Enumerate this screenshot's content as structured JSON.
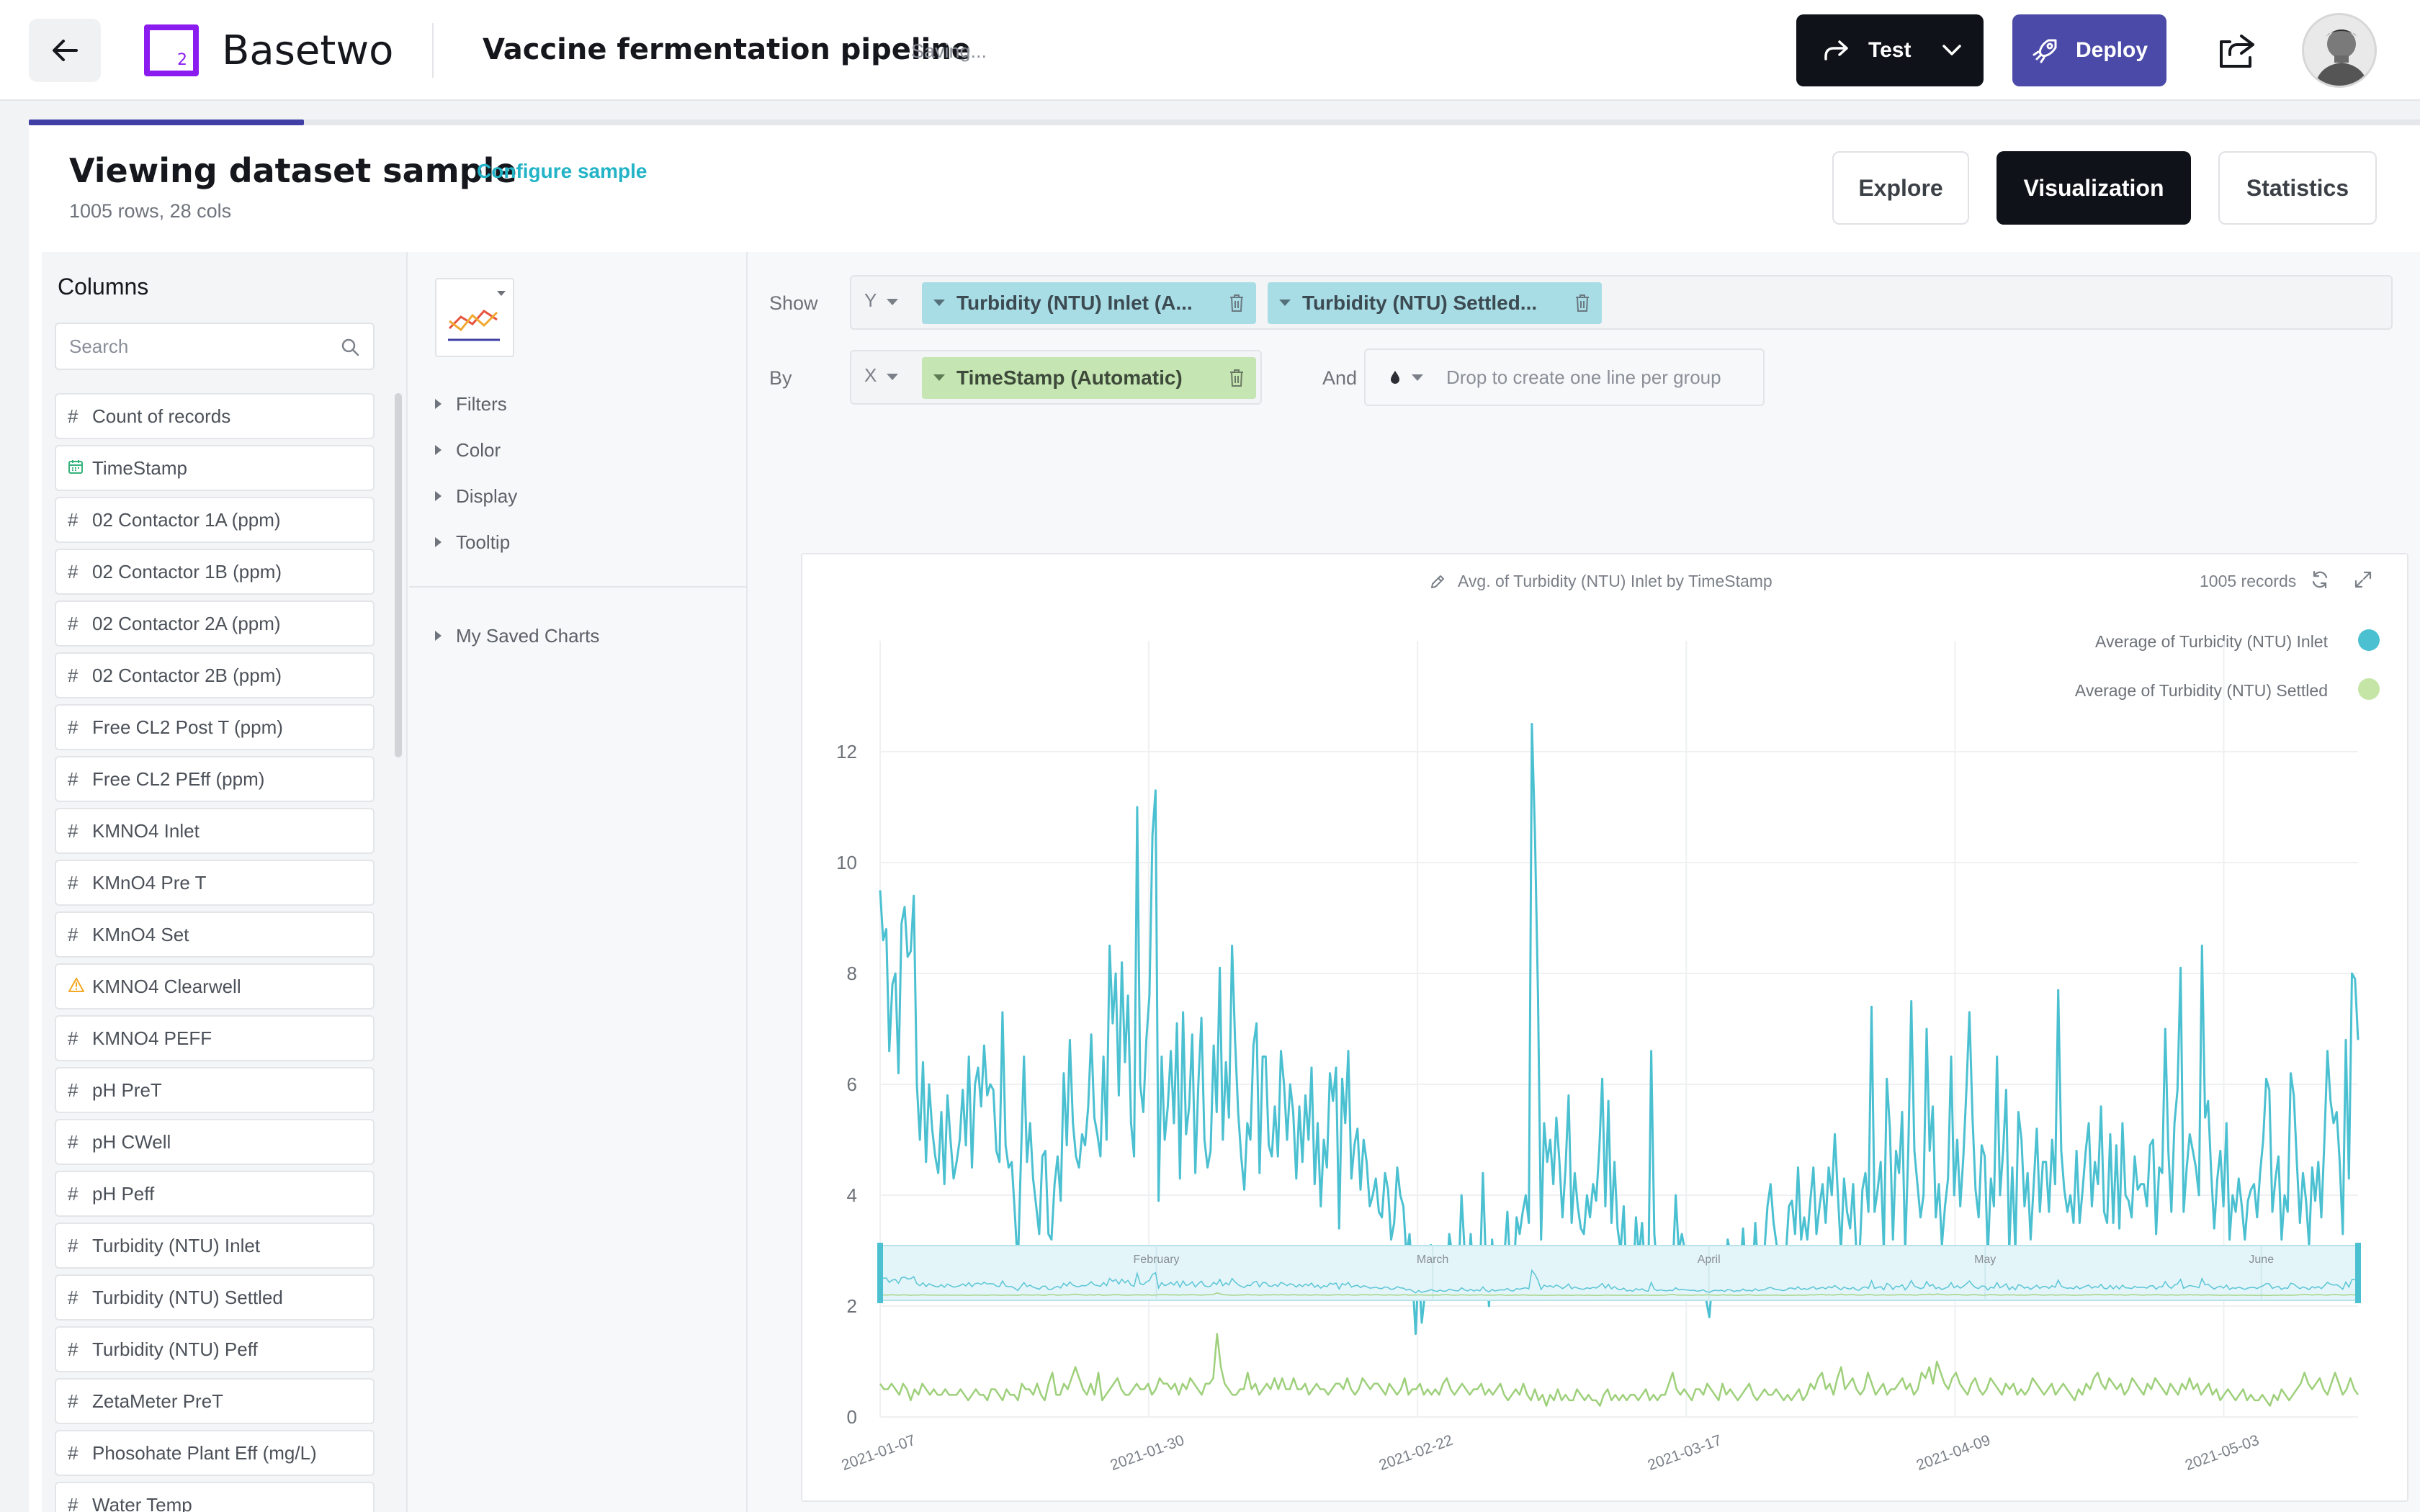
{
  "header": {
    "brand": "Basetwo",
    "logo_mark": "2",
    "project_title": "Vaccine fermentation pipeline",
    "status": "Saving...",
    "test_label": "Test",
    "deploy_label": "Deploy",
    "colors": {
      "logo": "#8b1cf0",
      "deploy_bg": "#4b4aa8",
      "test_bg": "#0f1218"
    }
  },
  "dataset": {
    "title": "Viewing dataset sample",
    "configure_link": "Configure sample",
    "summary": "1005 rows, 28 cols"
  },
  "view_tabs": [
    {
      "label": "Explore",
      "active": false
    },
    {
      "label": "Visualization",
      "active": true
    },
    {
      "label": "Statistics",
      "active": false
    }
  ],
  "columns_panel": {
    "title": "Columns",
    "search_placeholder": "Search",
    "items": [
      {
        "type": "#",
        "label": "Count of records"
      },
      {
        "type": "date",
        "label": "TimeStamp"
      },
      {
        "type": "#",
        "label": "02 Contactor 1A (ppm)"
      },
      {
        "type": "#",
        "label": "02 Contactor 1B (ppm)"
      },
      {
        "type": "#",
        "label": "02 Contactor 2A (ppm)"
      },
      {
        "type": "#",
        "label": "02 Contactor 2B (ppm)"
      },
      {
        "type": "#",
        "label": "Free CL2 Post T (ppm)"
      },
      {
        "type": "#",
        "label": "Free CL2 PEff (ppm)"
      },
      {
        "type": "#",
        "label": "KMNO4 Inlet"
      },
      {
        "type": "#",
        "label": "KMnO4 Pre T"
      },
      {
        "type": "#",
        "label": "KMnO4 Set"
      },
      {
        "type": "warn",
        "label": "KMNO4 Clearwell"
      },
      {
        "type": "#",
        "label": "KMNO4 PEFF"
      },
      {
        "type": "#",
        "label": "pH PreT"
      },
      {
        "type": "#",
        "label": "pH CWell"
      },
      {
        "type": "#",
        "label": "pH Peff"
      },
      {
        "type": "#",
        "label": "Turbidity (NTU) Inlet"
      },
      {
        "type": "#",
        "label": "Turbidity (NTU) Settled"
      },
      {
        "type": "#",
        "label": "Turbidity (NTU) Peff"
      },
      {
        "type": "#",
        "label": "ZetaMeter PreT"
      },
      {
        "type": "#",
        "label": "Phosohate Plant Eff (mg/L)"
      },
      {
        "type": "#",
        "label": "Water Temp"
      }
    ]
  },
  "config_panel": {
    "sections": [
      "Filters",
      "Color",
      "Display",
      "Tooltip"
    ],
    "saved_charts": "My Saved Charts"
  },
  "shelves": {
    "show_label": "Show",
    "by_label": "By",
    "and_label": "And",
    "y_axis": "Y",
    "x_axis": "X",
    "y_pills": [
      "Turbidity (NTU) Inlet (A...",
      "Turbidity (NTU) Settled..."
    ],
    "x_pill": "TimeStamp (Automatic)",
    "group_placeholder": "Drop to create one line per group"
  },
  "chart": {
    "title": "Avg. of Turbidity (NTU) Inlet by TimeStamp",
    "records": "1005 records"
  },
  "chart_data": {
    "type": "line",
    "xlabel": "TimeStamp",
    "ylabel": "",
    "x_ticks": [
      "2021-01-07",
      "2021-01-30",
      "2021-02-22",
      "2021-03-17",
      "2021-04-09",
      "2021-05-03"
    ],
    "y_ticks": [
      0,
      2,
      4,
      6,
      8,
      10,
      12
    ],
    "ylim": [
      0,
      14
    ],
    "legend_position": "top-right",
    "brush_ticks": [
      "February",
      "March",
      "April",
      "May",
      "June"
    ],
    "colors": {
      "inlet": "#4bc0d1",
      "settled": "#9ed07b"
    },
    "series": [
      {
        "name": "Average of Turbidity (NTU) Inlet",
        "values": [
          9.5,
          8.6,
          8.8,
          6.6,
          7.8,
          8.0,
          6.2,
          8.9,
          9.2,
          8.3,
          8.4,
          9.4,
          6.0,
          5.0,
          6.4,
          4.6,
          6.0,
          5.2,
          4.7,
          4.4,
          5.5,
          4.2,
          5.8,
          5.0,
          4.3,
          4.6,
          5.0,
          5.9,
          4.9,
          6.5,
          4.5,
          6.0,
          6.3,
          5.6,
          6.7,
          5.8,
          6.0,
          5.9,
          4.8,
          4.6,
          7.3,
          4.9,
          4.5,
          4.6,
          3.7,
          2.7,
          4.6,
          6.5,
          4.6,
          5.3,
          4.3,
          3.8,
          3.3,
          4.7,
          4.8,
          3.3,
          3.2,
          4.2,
          4.7,
          3.9,
          6.2,
          4.9,
          6.8,
          5.3,
          4.7,
          4.5,
          5.1,
          4.9,
          5.6,
          6.9,
          5.4,
          5.1,
          4.7,
          6.5,
          5.0,
          8.5,
          7.1,
          8.0,
          5.8,
          8.2,
          6.4,
          7.6,
          5.3,
          4.7,
          11.0,
          6.0,
          5.5,
          6.8,
          7.6,
          10.5,
          11.3,
          3.9,
          6.5,
          5.0,
          5.6,
          6.6,
          5.3,
          7.1,
          4.3,
          7.3,
          5.1,
          5.6,
          6.9,
          4.4,
          6.0,
          7.2,
          5.0,
          4.5,
          4.8,
          6.7,
          5.5,
          8.1,
          5.0,
          6.4,
          5.4,
          8.5,
          6.8,
          5.5,
          4.7,
          4.1,
          5.3,
          5.0,
          6.7,
          7.1,
          4.4,
          6.5,
          6.5,
          4.9,
          4.7,
          5.6,
          4.7,
          6.6,
          6.0,
          5.0,
          6.0,
          5.5,
          4.3,
          5.6,
          4.6,
          5.8,
          5.0,
          6.3,
          4.2,
          5.3,
          3.8,
          5.0,
          4.5,
          6.2,
          5.7,
          6.3,
          3.4,
          6.1,
          5.3,
          6.6,
          4.3,
          4.9,
          5.2,
          4.1,
          5.0,
          4.6,
          3.8,
          4.0,
          4.3,
          3.7,
          3.6,
          4.4,
          4.1,
          3.2,
          3.5,
          4.5,
          4.0,
          3.8,
          2.9,
          3.3,
          2.5,
          1.5,
          2.7,
          1.7,
          2.2,
          2.5,
          3.1,
          2.6,
          2.2,
          2.9,
          2.3,
          2.4,
          3.3,
          2.9,
          2.6,
          2.5,
          4.0,
          3.0,
          2.4,
          3.3,
          2.4,
          3.0,
          2.5,
          4.4,
          2.7,
          2.0,
          3.2,
          2.4,
          2.8,
          3.0,
          2.9,
          3.7,
          2.6,
          2.5,
          3.6,
          3.3,
          3.7,
          4.0,
          3.5,
          12.5,
          10.5,
          7.6,
          3.2,
          5.3,
          4.6,
          5.0,
          4.2,
          5.4,
          4.6,
          3.6,
          4.5,
          5.8,
          3.5,
          4.4,
          3.8,
          3.4,
          3.3,
          4.0,
          3.6,
          4.2,
          3.9,
          4.8,
          6.1,
          3.8,
          5.7,
          3.5,
          4.6,
          3.4,
          3.0,
          3.8,
          2.4,
          2.8,
          2.3,
          3.6,
          2.9,
          3.5,
          2.6,
          2.3,
          6.6,
          3.3,
          2.6,
          3.0,
          2.7,
          2.5,
          2.8,
          2.6,
          4.0,
          3.0,
          3.3,
          3.0,
          2.9,
          2.7,
          2.8,
          2.3,
          2.6,
          3.0,
          2.1,
          1.8,
          2.5,
          2.8,
          2.6,
          2.8,
          2.2,
          3.2,
          2.9,
          2.2,
          2.6,
          2.5,
          3.4,
          2.6,
          2.7,
          2.4,
          3.5,
          2.6,
          2.9,
          3.0,
          3.8,
          4.2,
          3.5,
          3.1,
          3.0,
          2.6,
          2.9,
          3.8,
          3.9,
          3.3,
          4.5,
          3.2,
          3.6,
          3.2,
          3.9,
          4.5,
          3.3,
          3.8,
          4.2,
          3.5,
          4.5,
          4.0,
          5.1,
          4.0,
          3.0,
          4.3,
          3.7,
          3.4,
          4.2,
          3.0,
          2.8,
          4.1,
          4.4,
          3.7,
          7.4,
          3.7,
          4.1,
          4.6,
          3.0,
          6.1,
          5.2,
          3.2,
          4.8,
          4.4,
          5.5,
          3.0,
          4.8,
          7.5,
          4.8,
          4.2,
          3.6,
          4.0,
          7.0,
          4.8,
          5.6,
          3.6,
          4.2,
          3.1,
          3.8,
          4.3,
          6.5,
          4.0,
          5.0,
          3.8,
          4.7,
          5.9,
          7.3,
          5.4,
          4.1,
          3.6,
          4.9,
          4.7,
          2.9,
          4.3,
          3.8,
          6.5,
          4.0,
          4.8,
          5.9,
          3.0,
          4.5,
          3.0,
          5.5,
          5.0,
          3.8,
          4.4,
          3.2,
          4.2,
          5.2,
          3.7,
          4.6,
          4.6,
          3.7,
          5.0,
          4.2,
          7.7,
          4.8,
          4.1,
          3.7,
          4.0,
          3.5,
          4.8,
          3.5,
          4.1,
          4.8,
          5.3,
          3.8,
          4.6,
          4.2,
          5.6,
          3.7,
          3.5,
          5.1,
          3.5,
          4.9,
          3.4,
          5.3,
          4.0,
          3.9,
          3.6,
          4.7,
          4.1,
          4.2,
          4.2,
          3.8,
          4.9,
          5.0,
          3.3,
          4.5,
          4.4,
          7.0,
          4.8,
          3.7,
          5.3,
          5.9,
          8.1,
          3.7,
          4.5,
          5.1,
          4.8,
          4.5,
          4.0,
          8.5,
          5.4,
          5.7,
          4.4,
          3.4,
          4.3,
          4.8,
          3.8,
          5.3,
          3.2,
          4.0,
          3.7,
          4.3,
          3.8,
          3.2,
          3.9,
          4.1,
          4.2,
          3.6,
          4.4,
          5.0,
          6.1,
          5.9,
          3.7,
          4.3,
          4.7,
          3.2,
          4.0,
          3.7,
          6.2,
          5.8,
          4.6,
          3.5,
          4.4,
          3.9,
          3.1,
          4.5,
          3.9,
          4.6,
          3.6,
          5.0,
          6.6,
          5.7,
          5.3,
          5.5,
          4.6,
          3.3,
          6.8,
          4.3,
          8.0,
          7.9,
          6.8
        ]
      },
      {
        "name": "Average of Turbidity (NTU) Settled",
        "values": [
          0.6,
          0.5,
          0.5,
          0.6,
          0.5,
          0.4,
          0.6,
          0.5,
          0.3,
          0.5,
          0.4,
          0.6,
          0.5,
          0.4,
          0.5,
          0.4,
          0.4,
          0.5,
          0.4,
          0.4,
          0.4,
          0.5,
          0.4,
          0.3,
          0.4,
          0.5,
          0.4,
          0.4,
          0.3,
          0.5,
          0.5,
          0.4,
          0.3,
          0.5,
          0.4,
          0.4,
          0.3,
          0.6,
          0.5,
          0.5,
          0.4,
          0.6,
          0.4,
          0.3,
          0.6,
          0.8,
          0.4,
          0.4,
          0.6,
          0.5,
          0.7,
          0.9,
          0.7,
          0.5,
          0.4,
          0.6,
          0.4,
          0.8,
          0.3,
          0.4,
          0.5,
          0.6,
          0.7,
          0.5,
          0.4,
          0.4,
          0.5,
          0.6,
          0.5,
          0.5,
          0.6,
          0.4,
          0.5,
          0.7,
          0.6,
          0.6,
          0.5,
          0.6,
          0.4,
          0.6,
          0.5,
          0.7,
          0.6,
          0.5,
          0.4,
          0.6,
          0.6,
          0.7,
          1.5,
          0.9,
          0.6,
          0.5,
          0.4,
          0.4,
          0.5,
          0.5,
          0.8,
          0.5,
          0.6,
          0.4,
          0.5,
          0.6,
          0.5,
          0.7,
          0.5,
          0.7,
          0.5,
          0.5,
          0.7,
          0.5,
          0.5,
          0.6,
          0.4,
          0.5,
          0.6,
          0.5,
          0.5,
          0.4,
          0.5,
          0.6,
          0.6,
          0.5,
          0.7,
          0.5,
          0.4,
          0.5,
          0.7,
          0.6,
          0.5,
          0.6,
          0.6,
          0.5,
          0.4,
          0.6,
          0.5,
          0.4,
          0.5,
          0.7,
          0.4,
          0.5,
          0.5,
          0.6,
          0.4,
          0.5,
          0.4,
          0.5,
          0.4,
          0.6,
          0.7,
          0.5,
          0.4,
          0.5,
          0.6,
          0.5,
          0.4,
          0.5,
          0.5,
          0.6,
          0.4,
          0.5,
          0.4,
          0.5,
          0.6,
          0.4,
          0.3,
          0.4,
          0.5,
          0.4,
          0.6,
          0.4,
          0.3,
          0.5,
          0.3,
          0.4,
          0.2,
          0.4,
          0.3,
          0.5,
          0.3,
          0.4,
          0.3,
          0.3,
          0.5,
          0.4,
          0.3,
          0.4,
          0.3,
          0.3,
          0.2,
          0.4,
          0.5,
          0.3,
          0.4,
          0.3,
          0.4,
          0.3,
          0.4,
          0.4,
          0.3,
          0.4,
          0.5,
          0.3,
          0.4,
          0.3,
          0.4,
          0.4,
          0.6,
          0.8,
          0.5,
          0.4,
          0.5,
          0.4,
          0.3,
          0.5,
          0.5,
          0.4,
          0.6,
          0.5,
          0.4,
          0.3,
          0.6,
          0.4,
          0.5,
          0.4,
          0.3,
          0.4,
          0.5,
          0.6,
          0.4,
          0.3,
          0.4,
          0.5,
          0.4,
          0.4,
          0.5,
          0.4,
          0.3,
          0.4,
          0.3,
          0.4,
          0.5,
          0.3,
          0.4,
          0.6,
          0.5,
          0.7,
          0.8,
          0.5,
          0.6,
          0.4,
          0.7,
          0.9,
          0.5,
          0.6,
          0.7,
          0.5,
          0.4,
          0.5,
          0.8,
          0.6,
          0.4,
          0.5,
          0.6,
          0.4,
          0.5,
          0.5,
          0.6,
          0.7,
          0.5,
          0.6,
          0.4,
          0.5,
          0.8,
          0.7,
          0.9,
          0.6,
          1.0,
          0.8,
          0.6,
          0.5,
          0.7,
          0.8,
          0.6,
          0.5,
          0.4,
          0.6,
          0.7,
          0.5,
          0.4,
          0.5,
          0.7,
          0.6,
          0.5,
          0.4,
          0.6,
          0.5,
          0.6,
          0.4,
          0.5,
          0.4,
          0.5,
          0.7,
          0.6,
          0.5,
          0.4,
          0.5,
          0.6,
          0.4,
          0.5,
          0.6,
          0.5,
          0.4,
          0.3,
          0.5,
          0.4,
          0.6,
          0.5,
          0.7,
          0.8,
          0.6,
          0.5,
          0.7,
          0.6,
          0.5,
          0.6,
          0.4,
          0.5,
          0.7,
          0.6,
          0.5,
          0.4,
          0.6,
          0.5,
          0.7,
          0.6,
          0.5,
          0.4,
          0.6,
          0.5,
          0.4,
          0.6,
          0.5,
          0.7,
          0.5,
          0.6,
          0.4,
          0.5,
          0.6,
          0.4,
          0.5,
          0.3,
          0.4,
          0.5,
          0.4,
          0.3,
          0.4,
          0.5,
          0.3,
          0.4,
          0.3,
          0.3,
          0.4,
          0.3,
          0.2,
          0.4,
          0.3,
          0.5,
          0.4,
          0.3,
          0.4,
          0.5,
          0.6,
          0.8,
          0.6,
          0.5,
          0.6,
          0.7,
          0.5,
          0.4,
          0.6,
          0.8,
          0.6,
          0.4,
          0.5,
          0.7,
          0.5,
          0.4
        ]
      }
    ]
  }
}
